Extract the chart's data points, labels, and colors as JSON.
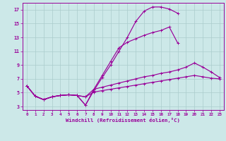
{
  "bg_color": "#cce8e8",
  "grid_color": "#aacccc",
  "line_color": "#990099",
  "xlabel": "Windchill (Refroidissement éolien,°C)",
  "xlim": [
    -0.5,
    23.5
  ],
  "ylim": [
    2.5,
    18.0
  ],
  "yticks": [
    3,
    5,
    7,
    9,
    11,
    13,
    15,
    17
  ],
  "xticks": [
    0,
    1,
    2,
    3,
    4,
    5,
    6,
    7,
    8,
    9,
    10,
    11,
    12,
    13,
    14,
    15,
    16,
    17,
    18,
    19,
    20,
    21,
    22,
    23
  ],
  "s1_x": [
    0,
    1,
    2,
    3,
    4,
    5,
    6,
    7,
    8,
    9,
    10,
    11,
    12,
    13,
    14,
    15,
    16,
    17,
    18
  ],
  "s1_y": [
    6.0,
    4.5,
    4.0,
    4.4,
    4.6,
    4.7,
    4.6,
    3.2,
    5.3,
    7.2,
    9.0,
    11.0,
    13.0,
    15.3,
    16.8,
    17.4,
    17.4,
    17.1,
    16.5
  ],
  "s2_x": [
    0,
    1,
    2,
    3,
    4,
    5,
    6,
    7,
    8,
    9,
    10,
    11,
    12,
    13,
    14,
    15,
    16,
    17,
    18,
    19,
    20,
    21,
    22,
    23
  ],
  "s2_y": [
    6.0,
    4.5,
    4.0,
    4.4,
    4.6,
    4.7,
    4.6,
    4.4,
    5.5,
    5.8,
    6.1,
    6.4,
    6.7,
    7.0,
    7.3,
    7.5,
    7.8,
    8.0,
    8.3,
    8.7,
    9.3,
    8.7,
    8.0,
    7.2
  ],
  "s3_x": [
    0,
    1,
    2,
    3,
    4,
    5,
    6,
    7,
    8,
    9,
    10,
    11,
    12,
    13,
    14,
    15,
    16,
    17,
    18,
    19,
    20,
    21,
    22,
    23
  ],
  "s3_y": [
    6.0,
    4.5,
    4.0,
    4.4,
    4.6,
    4.7,
    4.6,
    4.4,
    5.1,
    5.3,
    5.5,
    5.7,
    5.9,
    6.1,
    6.3,
    6.5,
    6.7,
    6.9,
    7.1,
    7.3,
    7.5,
    7.3,
    7.1,
    7.0
  ],
  "s4_x": [
    0,
    1,
    2,
    3,
    4,
    5,
    6,
    7,
    8,
    9,
    10,
    11,
    12,
    13,
    14,
    15,
    16,
    17,
    18
  ],
  "s4_y": [
    6.0,
    4.5,
    4.0,
    4.4,
    4.6,
    4.7,
    4.6,
    3.2,
    5.5,
    7.5,
    9.5,
    11.5,
    12.3,
    12.8,
    13.3,
    13.7,
    14.0,
    14.5,
    12.2
  ]
}
